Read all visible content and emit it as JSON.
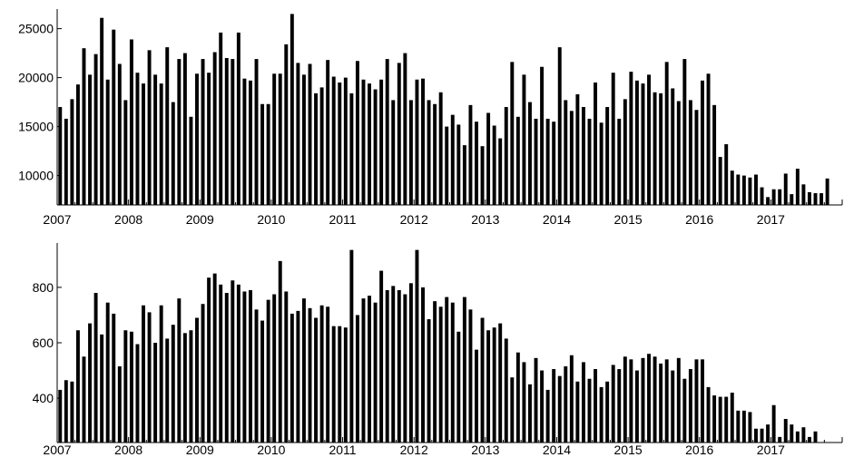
{
  "chart_data": [
    {
      "type": "bar",
      "title": "",
      "xlabel": "",
      "ylabel": "",
      "x_start": "2007-01",
      "interval": "month",
      "x_tick_labels": [
        "2007",
        "2008",
        "2009",
        "2010",
        "2011",
        "2012",
        "2013",
        "2014",
        "2015",
        "2016",
        "2017"
      ],
      "y_ticks": [
        10000,
        15000,
        20000,
        25000
      ],
      "y_tick_labels": [
        "10000",
        "15000",
        "20000",
        "25000"
      ],
      "ylim": [
        7000,
        27000
      ],
      "grid": false,
      "values": [
        17000,
        15800,
        17800,
        19300,
        23000,
        20300,
        22400,
        26100,
        19800,
        24900,
        21400,
        17700,
        23900,
        20500,
        19400,
        22800,
        20300,
        19400,
        23100,
        17500,
        21900,
        22500,
        16000,
        20400,
        21900,
        20500,
        22600,
        24600,
        22000,
        21900,
        24600,
        19900,
        19700,
        21900,
        17300,
        17300,
        20400,
        20400,
        23400,
        26500,
        21500,
        20300,
        21400,
        18400,
        19000,
        21800,
        20100,
        19500,
        20000,
        18400,
        21700,
        19800,
        19400,
        18800,
        19800,
        21900,
        17700,
        21500,
        22500,
        17700,
        19800,
        19900,
        17700,
        17300,
        18500,
        15000,
        16200,
        15200,
        13100,
        17200,
        15500,
        13000,
        16400,
        15100,
        13800,
        17000,
        21600,
        16000,
        20300,
        17500,
        15800,
        21100,
        15800,
        15500,
        23100,
        17700,
        16600,
        18300,
        17000,
        15800,
        19500,
        15400,
        17000,
        20500,
        15800,
        17800,
        20600,
        19700,
        19400,
        20300,
        18500,
        18400,
        21600,
        18900,
        17600,
        21900,
        17700,
        16700,
        19700,
        20400,
        17200,
        11900,
        13200,
        10500,
        10100,
        10000,
        9800,
        10100,
        8800,
        7800,
        8600,
        8600,
        10200,
        8100,
        10700,
        9100,
        8300,
        8200,
        8200,
        9700
      ]
    },
    {
      "type": "bar",
      "title": "",
      "xlabel": "",
      "ylabel": "",
      "x_start": "2007-01",
      "interval": "month",
      "x_tick_labels": [
        "2007",
        "2008",
        "2009",
        "2010",
        "2011",
        "2012",
        "2013",
        "2014",
        "2015",
        "2016",
        "2017"
      ],
      "y_ticks": [
        400,
        600,
        800
      ],
      "y_tick_labels": [
        "400",
        "600",
        "800"
      ],
      "ylim": [
        240,
        960
      ],
      "grid": false,
      "values": [
        430,
        465,
        460,
        645,
        550,
        670,
        780,
        630,
        745,
        705,
        515,
        645,
        640,
        595,
        735,
        710,
        600,
        735,
        615,
        665,
        760,
        635,
        645,
        690,
        740,
        835,
        850,
        810,
        780,
        825,
        810,
        785,
        790,
        720,
        680,
        755,
        775,
        895,
        785,
        705,
        715,
        760,
        725,
        690,
        735,
        730,
        660,
        660,
        655,
        935,
        700,
        760,
        770,
        745,
        860,
        790,
        805,
        790,
        775,
        815,
        935,
        800,
        685,
        750,
        730,
        765,
        745,
        640,
        765,
        720,
        575,
        690,
        645,
        655,
        670,
        615,
        475,
        565,
        530,
        450,
        545,
        500,
        430,
        505,
        480,
        515,
        555,
        460,
        530,
        470,
        505,
        440,
        460,
        520,
        505,
        550,
        540,
        500,
        545,
        560,
        550,
        525,
        540,
        500,
        545,
        470,
        505,
        540,
        540,
        440,
        410,
        405,
        405,
        420,
        355,
        355,
        350,
        290,
        290,
        305,
        375,
        260,
        325,
        305,
        280,
        295,
        260,
        280
      ]
    }
  ]
}
